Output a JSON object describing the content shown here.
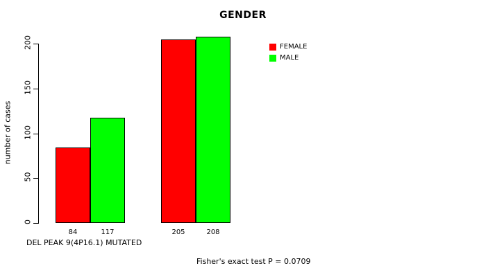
{
  "chart_data": {
    "type": "bar",
    "title": "GENDER",
    "ylabel": "number of cases",
    "x_axis_label": "DEL PEAK 9(4P16.1) MUTATED",
    "footer": "Fisher's exact test P = 0.0709",
    "ylim": [
      0,
      200
    ],
    "yticks": [
      0,
      50,
      100,
      150,
      200
    ],
    "grid": false,
    "legend_position": "top-right",
    "series": [
      {
        "name": "FEMALE",
        "color": "#ff0000",
        "values": [
          84,
          205
        ]
      },
      {
        "name": "MALE",
        "color": "#00ff00",
        "values": [
          117,
          208
        ]
      }
    ],
    "bar_labels": [
      [
        "84",
        "117"
      ],
      [
        "205",
        "208"
      ]
    ],
    "legend": [
      {
        "label": "FEMALE",
        "color": "#ff0000"
      },
      {
        "label": "MALE",
        "color": "#00ff00"
      }
    ]
  }
}
